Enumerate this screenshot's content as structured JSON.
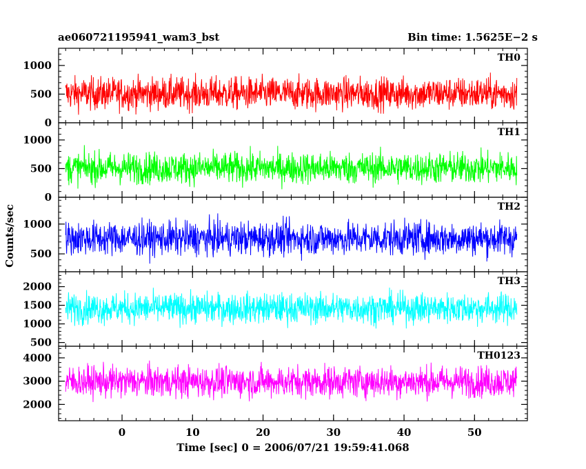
{
  "header": {
    "left_title": "ae060721195941_wam3_bst",
    "right_title": "Bin time: 1.5625E−2 s"
  },
  "chart_data": {
    "type": "line",
    "xlabel": "Time [sec] 0 = 2006/07/21 19:59:41.068",
    "ylabel": "Counts/sec",
    "xlim": [
      -9,
      57.5
    ],
    "data_xrange": [
      -8,
      56
    ],
    "x_ticks": [
      0,
      10,
      20,
      30,
      40,
      50
    ],
    "x_minor_step": 2,
    "grid": false,
    "legend": "none",
    "panels": [
      {
        "name": "TH0",
        "color": "#ff0000",
        "ylim": [
          0,
          1300
        ],
        "y_ticks": [
          0,
          500,
          1000
        ],
        "y_minor_step": 100,
        "baseline": 510,
        "spread": 360,
        "floor": 40,
        "ceiling": 1300
      },
      {
        "name": "TH1",
        "color": "#00ff00",
        "ylim": [
          0,
          1300
        ],
        "y_ticks": [
          0,
          500,
          1000
        ],
        "y_minor_step": 100,
        "baseline": 510,
        "spread": 350,
        "floor": 40,
        "ceiling": 1300
      },
      {
        "name": "TH2",
        "color": "#0000ff",
        "ylim": [
          200,
          1450
        ],
        "y_ticks": [
          500,
          1000
        ],
        "y_minor_step": 100,
        "baseline": 760,
        "spread": 360,
        "floor": 220,
        "ceiling": 1450
      },
      {
        "name": "TH3",
        "color": "#00ffff",
        "ylim": [
          400,
          2400
        ],
        "y_ticks": [
          500,
          1000,
          1500,
          2000
        ],
        "y_minor_step": 100,
        "baseline": 1420,
        "spread": 520,
        "floor": 420,
        "ceiling": 2400
      },
      {
        "name": "TH0123",
        "color": "#ff00ff",
        "ylim": [
          1300,
          4500
        ],
        "y_ticks": [
          2000,
          3000,
          4000
        ],
        "y_minor_step": 200,
        "baseline": 2980,
        "spread": 860,
        "floor": 1330,
        "ceiling": 4500
      }
    ]
  }
}
